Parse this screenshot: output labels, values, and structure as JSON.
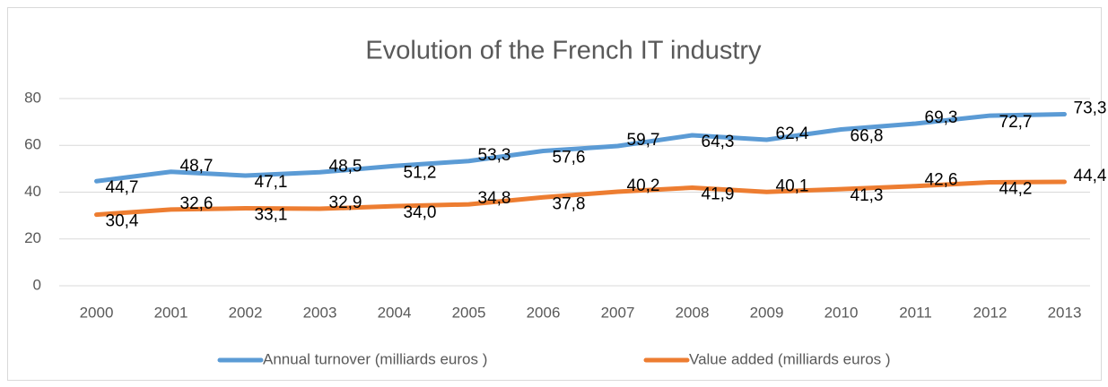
{
  "chart_data": {
    "type": "line",
    "title": "Evolution of the French IT industry",
    "categories": [
      "2000",
      "2001",
      "2002",
      "2003",
      "2004",
      "2005",
      "2006",
      "2007",
      "2008",
      "2009",
      "2010",
      "2011",
      "2012",
      "2013"
    ],
    "series": [
      {
        "name": "Annual turnover (milliards euros )",
        "color": "#5b9bd5",
        "values": [
          44.7,
          48.7,
          47.1,
          48.5,
          51.2,
          53.3,
          57.6,
          59.7,
          64.3,
          62.4,
          66.8,
          69.3,
          72.7,
          73.3
        ],
        "value_labels": [
          "44,7",
          "48,7",
          "47,1",
          "48,5",
          "51,2",
          "53,3",
          "57,6",
          "59,7",
          "64,3",
          "62,4",
          "66,8",
          "69,3",
          "72,7",
          "73,3"
        ]
      },
      {
        "name": "Value added (milliards euros )",
        "color": "#ed7d31",
        "values": [
          30.4,
          32.6,
          33.1,
          32.9,
          34.0,
          34.8,
          37.8,
          40.2,
          41.9,
          40.1,
          41.3,
          42.6,
          44.2,
          44.4
        ],
        "value_labels": [
          "30,4",
          "32,6",
          "33,1",
          "32,9",
          "34,0",
          "34,8",
          "37,8",
          "40,2",
          "41,9",
          "40,1",
          "41,3",
          "42,6",
          "44,2",
          "44,4"
        ]
      }
    ],
    "ylim": [
      0,
      80
    ],
    "yticks": [
      0,
      20,
      40,
      60,
      80
    ],
    "grid": true,
    "legend": "bottom"
  }
}
